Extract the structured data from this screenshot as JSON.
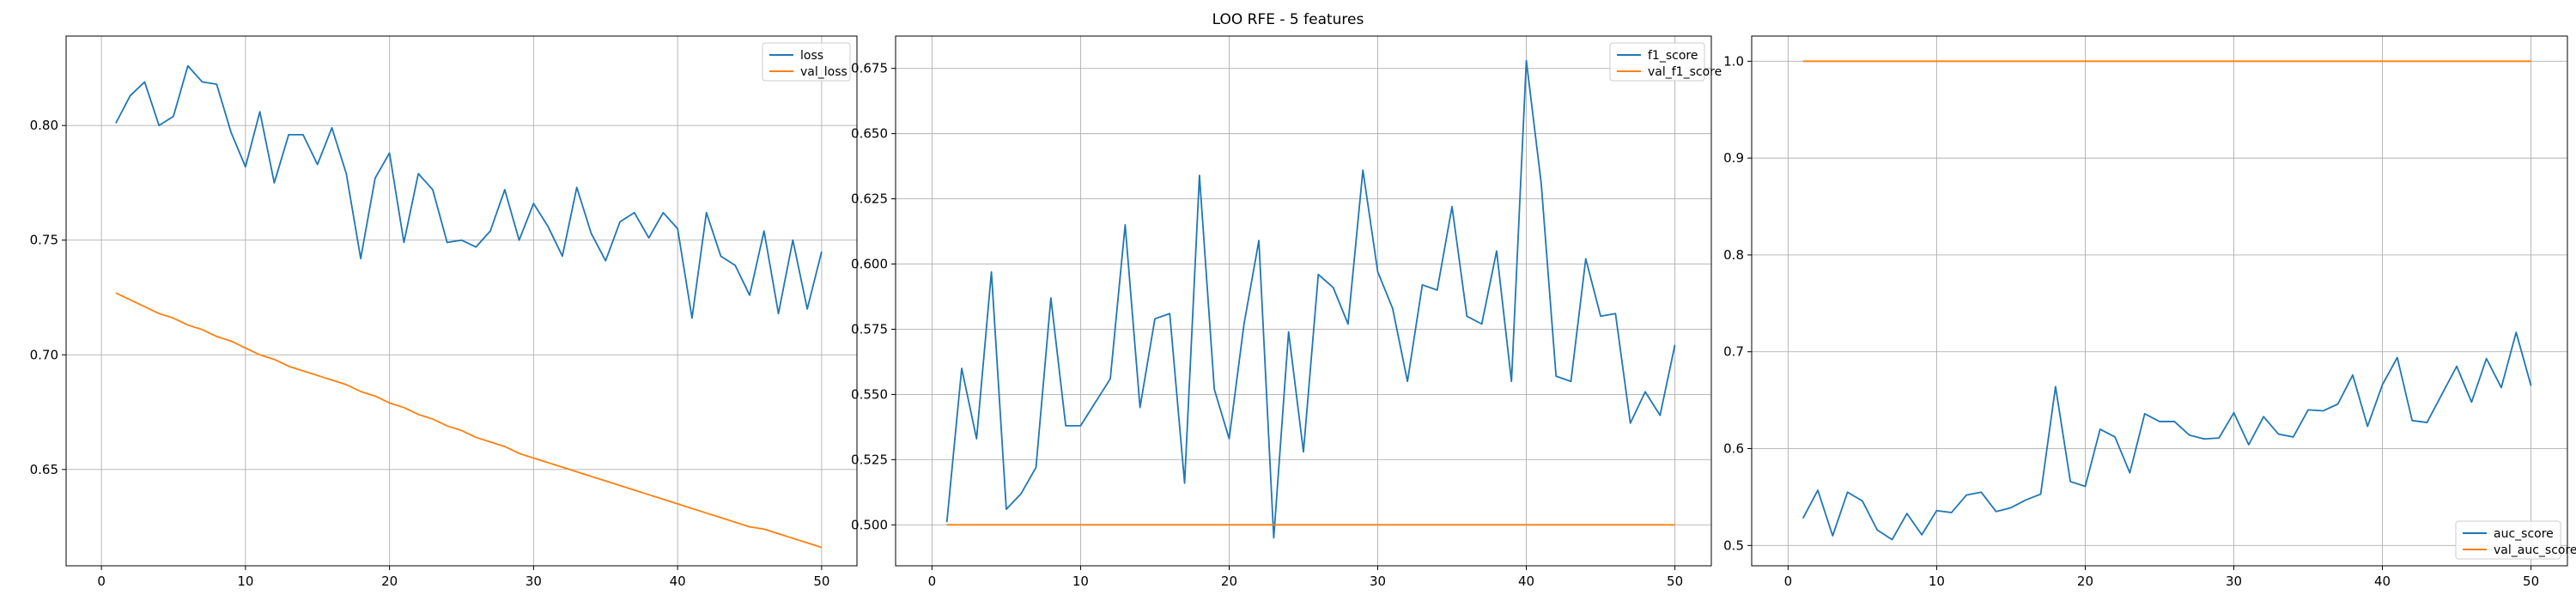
{
  "figure": {
    "suptitle": "LOO RFE - 5 features"
  },
  "colors": {
    "series_1": "#1f77b4",
    "series_2": "#ff7f0e",
    "grid": "#b0b0b0",
    "axes": "#000000"
  },
  "chart_data": [
    {
      "type": "line",
      "title": "",
      "xlabel": "",
      "ylabel": "",
      "grid": true,
      "legend_position": "upper-right",
      "xlim": [
        -2.45,
        52.45
      ],
      "ylim": [
        0.608,
        0.839
      ],
      "xticks": [
        0,
        10,
        20,
        30,
        40,
        50
      ],
      "yticks": [
        0.65,
        0.7,
        0.75,
        0.8
      ],
      "yticks_labels": [
        "0.65",
        "0.70",
        "0.75",
        "0.80"
      ],
      "x": [
        1,
        2,
        3,
        4,
        5,
        6,
        7,
        8,
        9,
        10,
        11,
        12,
        13,
        14,
        15,
        16,
        17,
        18,
        19,
        20,
        21,
        22,
        23,
        24,
        25,
        26,
        27,
        28,
        29,
        30,
        31,
        32,
        33,
        34,
        35,
        36,
        37,
        38,
        39,
        40,
        41,
        42,
        43,
        44,
        45,
        46,
        47,
        48,
        49,
        50
      ],
      "series": [
        {
          "name": "loss",
          "values": [
            0.801,
            0.813,
            0.819,
            0.8,
            0.804,
            0.826,
            0.819,
            0.818,
            0.797,
            0.782,
            0.806,
            0.775,
            0.796,
            0.796,
            0.783,
            0.799,
            0.779,
            0.742,
            0.777,
            0.788,
            0.749,
            0.779,
            0.772,
            0.749,
            0.75,
            0.747,
            0.754,
            0.772,
            0.75,
            0.766,
            0.756,
            0.743,
            0.773,
            0.753,
            0.741,
            0.758,
            0.762,
            0.751,
            0.762,
            0.755,
            0.716,
            0.762,
            0.743,
            0.739,
            0.726,
            0.754,
            0.718,
            0.75,
            0.72,
            0.745
          ]
        },
        {
          "name": "val_loss",
          "values": [
            0.727,
            0.724,
            0.721,
            0.718,
            0.716,
            0.713,
            0.711,
            0.708,
            0.706,
            0.703,
            0.7,
            0.698,
            0.695,
            0.693,
            0.691,
            0.689,
            0.687,
            0.684,
            0.682,
            0.679,
            0.677,
            0.674,
            0.672,
            0.669,
            0.667,
            0.664,
            0.662,
            0.66,
            0.657,
            0.655,
            0.653,
            0.651,
            0.649,
            0.647,
            0.645,
            0.643,
            0.641,
            0.639,
            0.637,
            0.635,
            0.633,
            0.631,
            0.629,
            0.627,
            0.625,
            0.624,
            0.622,
            0.62,
            0.618,
            0.616
          ]
        }
      ]
    },
    {
      "type": "line",
      "title": "",
      "xlabel": "",
      "ylabel": "",
      "grid": true,
      "legend_position": "upper-right",
      "xlim": [
        -2.45,
        52.45
      ],
      "ylim": [
        0.4843,
        0.6874
      ],
      "xticks": [
        0,
        10,
        20,
        30,
        40,
        50
      ],
      "yticks": [
        0.5,
        0.525,
        0.55,
        0.575,
        0.6,
        0.625,
        0.65,
        0.675
      ],
      "yticks_labels": [
        "0.500",
        "0.525",
        "0.550",
        "0.575",
        "0.600",
        "0.625",
        "0.650",
        "0.675"
      ],
      "x": [
        1,
        2,
        3,
        4,
        5,
        6,
        7,
        8,
        9,
        10,
        11,
        12,
        13,
        14,
        15,
        16,
        17,
        18,
        19,
        20,
        21,
        22,
        23,
        24,
        25,
        26,
        27,
        28,
        29,
        30,
        31,
        32,
        33,
        34,
        35,
        36,
        37,
        38,
        39,
        40,
        41,
        42,
        43,
        44,
        45,
        46,
        47,
        48,
        49,
        50
      ],
      "series": [
        {
          "name": "f1_score",
          "values": [
            0.501,
            0.56,
            0.533,
            0.597,
            0.506,
            0.512,
            0.522,
            0.587,
            0.538,
            0.538,
            0.547,
            0.556,
            0.615,
            0.545,
            0.579,
            0.581,
            0.516,
            0.634,
            0.552,
            0.533,
            0.577,
            0.609,
            0.495,
            0.574,
            0.528,
            0.596,
            0.591,
            0.577,
            0.636,
            0.597,
            0.583,
            0.555,
            0.592,
            0.59,
            0.622,
            0.58,
            0.577,
            0.605,
            0.555,
            0.678,
            0.631,
            0.557,
            0.555,
            0.602,
            0.58,
            0.581,
            0.539,
            0.551,
            0.542,
            0.569
          ]
        },
        {
          "name": "val_f1_score",
          "values": [
            0.5,
            0.5,
            0.5,
            0.5,
            0.5,
            0.5,
            0.5,
            0.5,
            0.5,
            0.5,
            0.5,
            0.5,
            0.5,
            0.5,
            0.5,
            0.5,
            0.5,
            0.5,
            0.5,
            0.5,
            0.5,
            0.5,
            0.5,
            0.5,
            0.5,
            0.5,
            0.5,
            0.5,
            0.5,
            0.5,
            0.5,
            0.5,
            0.5,
            0.5,
            0.5,
            0.5,
            0.5,
            0.5,
            0.5,
            0.5,
            0.5,
            0.5,
            0.5,
            0.5,
            0.5,
            0.5,
            0.5,
            0.5,
            0.5,
            0.5
          ]
        }
      ]
    },
    {
      "type": "line",
      "title": "",
      "xlabel": "",
      "ylabel": "",
      "grid": true,
      "legend_position": "lower-right",
      "xlim": [
        -2.45,
        52.45
      ],
      "ylim": [
        0.479,
        1.026
      ],
      "xticks": [
        0,
        10,
        20,
        30,
        40,
        50
      ],
      "yticks": [
        0.5,
        0.6,
        0.7,
        0.8,
        0.9,
        1.0
      ],
      "yticks_labels": [
        "0.5",
        "0.6",
        "0.7",
        "0.8",
        "0.9",
        "1.0"
      ],
      "x": [
        1,
        2,
        3,
        4,
        5,
        6,
        7,
        8,
        9,
        10,
        11,
        12,
        13,
        14,
        15,
        16,
        17,
        18,
        19,
        20,
        21,
        22,
        23,
        24,
        25,
        26,
        27,
        28,
        29,
        30,
        31,
        32,
        33,
        34,
        35,
        36,
        37,
        38,
        39,
        40,
        41,
        42,
        43,
        44,
        45,
        46,
        47,
        48,
        49,
        50
      ],
      "series": [
        {
          "name": "auc_score",
          "values": [
            0.528,
            0.557,
            0.51,
            0.555,
            0.546,
            0.516,
            0.506,
            0.533,
            0.511,
            0.536,
            0.534,
            0.552,
            0.555,
            0.535,
            0.539,
            0.547,
            0.553,
            0.664,
            0.566,
            0.561,
            0.62,
            0.612,
            0.575,
            0.636,
            0.628,
            0.628,
            0.614,
            0.61,
            0.611,
            0.637,
            0.604,
            0.633,
            0.615,
            0.612,
            0.64,
            0.639,
            0.646,
            0.676,
            0.623,
            0.666,
            0.694,
            0.629,
            0.627,
            0.656,
            0.685,
            0.648,
            0.693,
            0.663,
            0.72,
            0.665
          ]
        },
        {
          "name": "val_auc_score",
          "values": [
            1.0,
            1.0,
            1.0,
            1.0,
            1.0,
            1.0,
            1.0,
            1.0,
            1.0,
            1.0,
            1.0,
            1.0,
            1.0,
            1.0,
            1.0,
            1.0,
            1.0,
            1.0,
            1.0,
            1.0,
            1.0,
            1.0,
            1.0,
            1.0,
            1.0,
            1.0,
            1.0,
            1.0,
            1.0,
            1.0,
            1.0,
            1.0,
            1.0,
            1.0,
            1.0,
            1.0,
            1.0,
            1.0,
            1.0,
            1.0,
            1.0,
            1.0,
            1.0,
            1.0,
            1.0,
            1.0,
            1.0,
            1.0,
            1.0,
            1.0
          ]
        }
      ]
    }
  ]
}
